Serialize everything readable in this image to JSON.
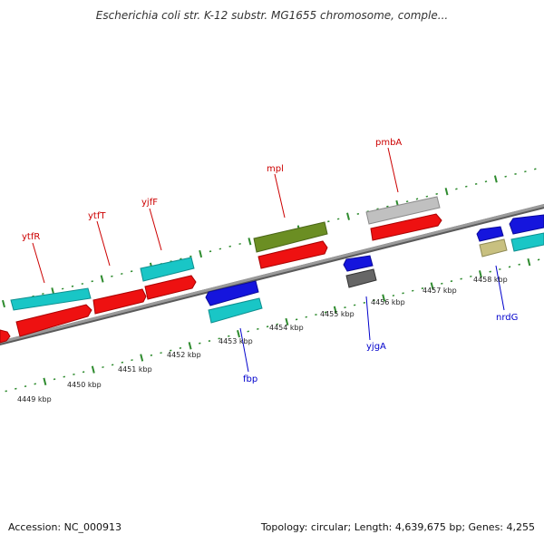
{
  "title": "Escherichia coli str. K-12 substr. MG1655 chromosome, comple...",
  "footer": {
    "accession": "Accession: NC_000913",
    "stats": "Topology: circular; Length: 4,639,675 bp; Genes: 4,255"
  },
  "colors": {
    "backbone": "#8a8a8a",
    "tick": "#2e8b2e",
    "top_label": "#cc0000",
    "bottom_label": "#0000cc",
    "scale_label": "#222222"
  },
  "scale_labels": [
    "4449 kbp",
    "4450 kbp",
    "4451 kbp",
    "4452 kbp",
    "4453 kbp",
    "4454 kbp",
    "4455 kbp",
    "4456 kbp",
    "4457 kbp",
    "4458 kbp"
  ],
  "genes_top": [
    "ytfR",
    "ytfT",
    "yjfF",
    "mpl",
    "pmbA"
  ],
  "genes_bottom": [
    "fbp",
    "yjgA",
    "nrdG"
  ]
}
